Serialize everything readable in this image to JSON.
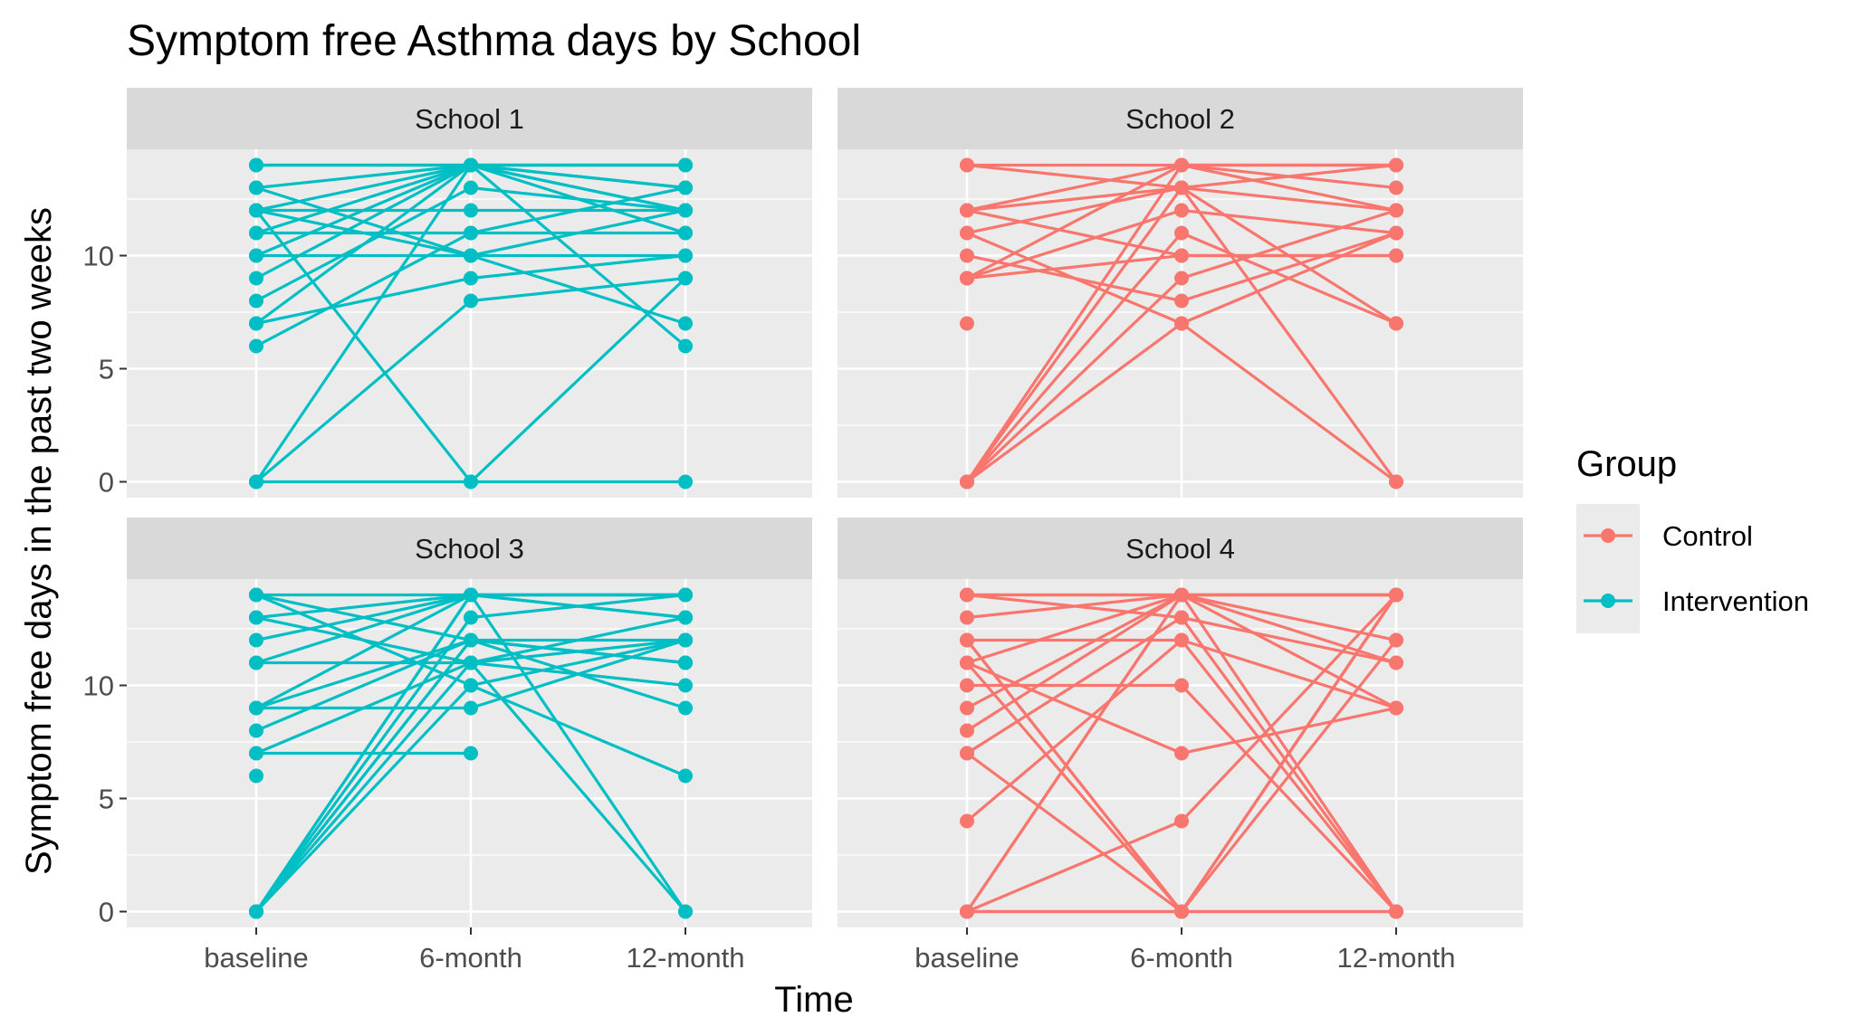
{
  "chart_data": {
    "type": "line",
    "title": "Symptom free Asthma days by School",
    "xlabel": "Time",
    "ylabel": "Symptom free days in the past two weeks",
    "categories": [
      "baseline",
      "6-month",
      "12-month"
    ],
    "y_ticks": [
      0,
      5,
      10
    ],
    "ylim": [
      -0.7,
      14.7
    ],
    "grid": true,
    "legend_position": "right",
    "legend": {
      "title": "Group",
      "entries": [
        {
          "name": "Control",
          "color": "#f8766d"
        },
        {
          "name": "Intervention",
          "color": "#00bfc4"
        }
      ]
    },
    "facets": [
      {
        "label": "School 1",
        "group": "Intervention",
        "series": [
          [
            14,
            14,
            14
          ],
          [
            14,
            14,
            13
          ],
          [
            13,
            14,
            12
          ],
          [
            13,
            10,
            12
          ],
          [
            12,
            14,
            11
          ],
          [
            12,
            12,
            12
          ],
          [
            12,
            10,
            10
          ],
          [
            11,
            14,
            14
          ],
          [
            11,
            11,
            11
          ],
          [
            10,
            14,
            13
          ],
          [
            10,
            10,
            7
          ],
          [
            9,
            14,
            6
          ],
          [
            8,
            13,
            12
          ],
          [
            7,
            14,
            14
          ],
          [
            7,
            9,
            10
          ],
          [
            6,
            11,
            13
          ],
          [
            0,
            14,
            12
          ],
          [
            0,
            8,
            9
          ],
          [
            0,
            0,
            0
          ],
          [
            12,
            0,
            9
          ]
        ]
      },
      {
        "label": "School 2",
        "group": "Control",
        "series": [
          [
            14,
            14,
            14
          ],
          [
            14,
            13,
            7
          ],
          [
            12,
            14,
            13
          ],
          [
            12,
            13,
            12
          ],
          [
            11,
            13,
            14
          ],
          [
            11,
            7,
            0
          ],
          [
            10,
            8,
            11
          ],
          [
            9,
            14,
            12
          ],
          [
            9,
            12,
            11
          ],
          [
            9,
            10,
            10
          ],
          [
            7,
            null,
            null
          ],
          [
            0,
            14,
            14
          ],
          [
            0,
            11,
            7
          ],
          [
            0,
            9,
            12
          ],
          [
            0,
            7,
            11
          ],
          [
            0,
            13,
            0
          ],
          [
            12,
            10,
            10
          ]
        ]
      },
      {
        "label": "School 3",
        "group": "Intervention",
        "series": [
          [
            14,
            14,
            14
          ],
          [
            14,
            12,
            11
          ],
          [
            14,
            10,
            12
          ],
          [
            13,
            14,
            13
          ],
          [
            13,
            11,
            12
          ],
          [
            12,
            14,
            14
          ],
          [
            11,
            11,
            10
          ],
          [
            11,
            14,
            14
          ],
          [
            9,
            14,
            13
          ],
          [
            9,
            12,
            11
          ],
          [
            9,
            9,
            12
          ],
          [
            8,
            12,
            9
          ],
          [
            7,
            7,
            null
          ],
          [
            7,
            11,
            13
          ],
          [
            6,
            null,
            null
          ],
          [
            0,
            14,
            14
          ],
          [
            0,
            13,
            14
          ],
          [
            0,
            12,
            11
          ],
          [
            0,
            11,
            0
          ],
          [
            0,
            10,
            6
          ],
          [
            0,
            14,
            0
          ],
          [
            0,
            12,
            12
          ]
        ]
      },
      {
        "label": "School 4",
        "group": "Control",
        "series": [
          [
            14,
            14,
            14
          ],
          [
            14,
            13,
            0
          ],
          [
            14,
            14,
            11
          ],
          [
            13,
            14,
            14
          ],
          [
            12,
            12,
            9
          ],
          [
            12,
            0,
            14
          ],
          [
            11,
            14,
            12
          ],
          [
            11,
            7,
            9
          ],
          [
            10,
            10,
            0
          ],
          [
            9,
            14,
            0
          ],
          [
            8,
            14,
            14
          ],
          [
            7,
            13,
            11
          ],
          [
            7,
            0,
            14
          ],
          [
            4,
            12,
            0
          ],
          [
            0,
            14,
            14
          ],
          [
            0,
            0,
            0
          ],
          [
            0,
            4,
            14
          ],
          [
            0,
            0,
            12
          ],
          [
            0,
            14,
            9
          ],
          [
            12,
            0,
            0
          ],
          [
            11,
            0,
            14
          ]
        ]
      }
    ]
  }
}
